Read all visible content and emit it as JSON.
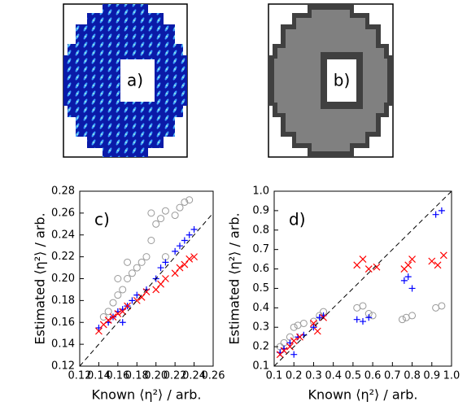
{
  "images": [
    {
      "label": "a)"
    },
    {
      "label": "b)"
    }
  ],
  "chart_data": [
    {
      "type": "scatter",
      "annotation": "c)",
      "xlabel": "Known ⟨η²⟩ / arb.",
      "ylabel": "Estimated ⟨η²⟩ / arb.",
      "xlim": [
        0.12,
        0.26
      ],
      "xticks": [
        0.12,
        0.14,
        0.16,
        0.18,
        {
          "value": 0.2,
          "label": "0.20"
        },
        0.22,
        0.24,
        0.26
      ],
      "ylim": [
        0.12,
        0.28
      ],
      "yticks": [
        0.12,
        0.14,
        0.16,
        0.18,
        {
          "value": 0.2,
          "label": "0.20"
        },
        0.22,
        0.24,
        0.26,
        0.28
      ],
      "identity_line": true,
      "series": [
        {
          "color": "#999999",
          "marker": "o",
          "x": [
            0.145,
            0.15,
            0.155,
            0.16,
            0.165,
            0.17,
            0.175,
            0.18,
            0.185,
            0.19,
            0.195,
            0.2,
            0.205,
            0.21,
            0.22,
            0.225,
            0.23,
            0.235,
            0.16,
            0.17,
            0.195,
            0.21
          ],
          "values": [
            0.165,
            0.17,
            0.178,
            0.185,
            0.19,
            0.2,
            0.205,
            0.21,
            0.215,
            0.22,
            0.235,
            0.25,
            0.255,
            0.262,
            0.258,
            0.265,
            0.27,
            0.272,
            0.2,
            0.215,
            0.26,
            0.22
          ]
        },
        {
          "color": "#0000ff",
          "marker": "+",
          "x": [
            0.14,
            0.15,
            0.155,
            0.16,
            0.165,
            0.17,
            0.175,
            0.18,
            0.19,
            0.2,
            0.205,
            0.21,
            0.22,
            0.225,
            0.23,
            0.235,
            0.24,
            0.165
          ],
          "values": [
            0.155,
            0.16,
            0.165,
            0.17,
            0.172,
            0.175,
            0.18,
            0.185,
            0.19,
            0.2,
            0.21,
            0.215,
            0.225,
            0.23,
            0.235,
            0.24,
            0.245,
            0.16
          ]
        },
        {
          "color": "#ff0000",
          "marker": "x",
          "x": [
            0.14,
            0.145,
            0.15,
            0.155,
            0.16,
            0.165,
            0.17,
            0.18,
            0.185,
            0.19,
            0.2,
            0.205,
            0.21,
            0.22,
            0.225,
            0.23,
            0.235,
            0.24
          ],
          "values": [
            0.152,
            0.158,
            0.162,
            0.165,
            0.168,
            0.17,
            0.175,
            0.18,
            0.183,
            0.188,
            0.19,
            0.195,
            0.2,
            0.205,
            0.21,
            0.213,
            0.218,
            0.22
          ]
        }
      ]
    },
    {
      "type": "scatter",
      "annotation": "d)",
      "xlabel": "Known ⟨η²⟩ / arb.",
      "ylabel": "Estimated ⟨η²⟩ / arb.",
      "xlim": [
        0.1,
        1.0
      ],
      "xticks": [
        0.1,
        0.2,
        0.3,
        0.4,
        0.5,
        0.6,
        0.7,
        0.8,
        0.9,
        {
          "value": 1.0,
          "label": "1.0"
        }
      ],
      "ylim": [
        0.1,
        1.0
      ],
      "yticks": [
        0.1,
        0.2,
        0.3,
        0.4,
        0.5,
        0.6,
        0.7,
        0.8,
        0.9,
        {
          "value": 1.0,
          "label": "1.0"
        }
      ],
      "identity_line": true,
      "series": [
        {
          "color": "#999999",
          "marker": "o",
          "x": [
            0.13,
            0.15,
            0.18,
            0.2,
            0.22,
            0.25,
            0.3,
            0.33,
            0.35,
            0.52,
            0.55,
            0.6,
            0.58,
            0.77,
            0.8,
            0.75,
            0.92,
            0.95
          ],
          "values": [
            0.2,
            0.22,
            0.25,
            0.3,
            0.31,
            0.32,
            0.33,
            0.36,
            0.38,
            0.4,
            0.41,
            0.36,
            0.37,
            0.35,
            0.36,
            0.34,
            0.4,
            0.41
          ]
        },
        {
          "color": "#0000ff",
          "marker": "+",
          "x": [
            0.13,
            0.15,
            0.18,
            0.2,
            0.22,
            0.25,
            0.3,
            0.33,
            0.35,
            0.52,
            0.55,
            0.58,
            0.76,
            0.78,
            0.8,
            0.92,
            0.95
          ],
          "values": [
            0.17,
            0.19,
            0.22,
            0.16,
            0.25,
            0.26,
            0.3,
            0.35,
            0.36,
            0.34,
            0.33,
            0.35,
            0.54,
            0.56,
            0.5,
            0.88,
            0.9
          ]
        },
        {
          "color": "#ff0000",
          "marker": "x",
          "x": [
            0.13,
            0.15,
            0.18,
            0.2,
            0.23,
            0.3,
            0.32,
            0.35,
            0.52,
            0.55,
            0.58,
            0.62,
            0.76,
            0.78,
            0.8,
            0.9,
            0.93,
            0.96
          ],
          "values": [
            0.16,
            0.18,
            0.2,
            0.23,
            0.25,
            0.32,
            0.28,
            0.35,
            0.62,
            0.65,
            0.6,
            0.61,
            0.6,
            0.62,
            0.65,
            0.64,
            0.62,
            0.67
          ]
        }
      ]
    }
  ]
}
